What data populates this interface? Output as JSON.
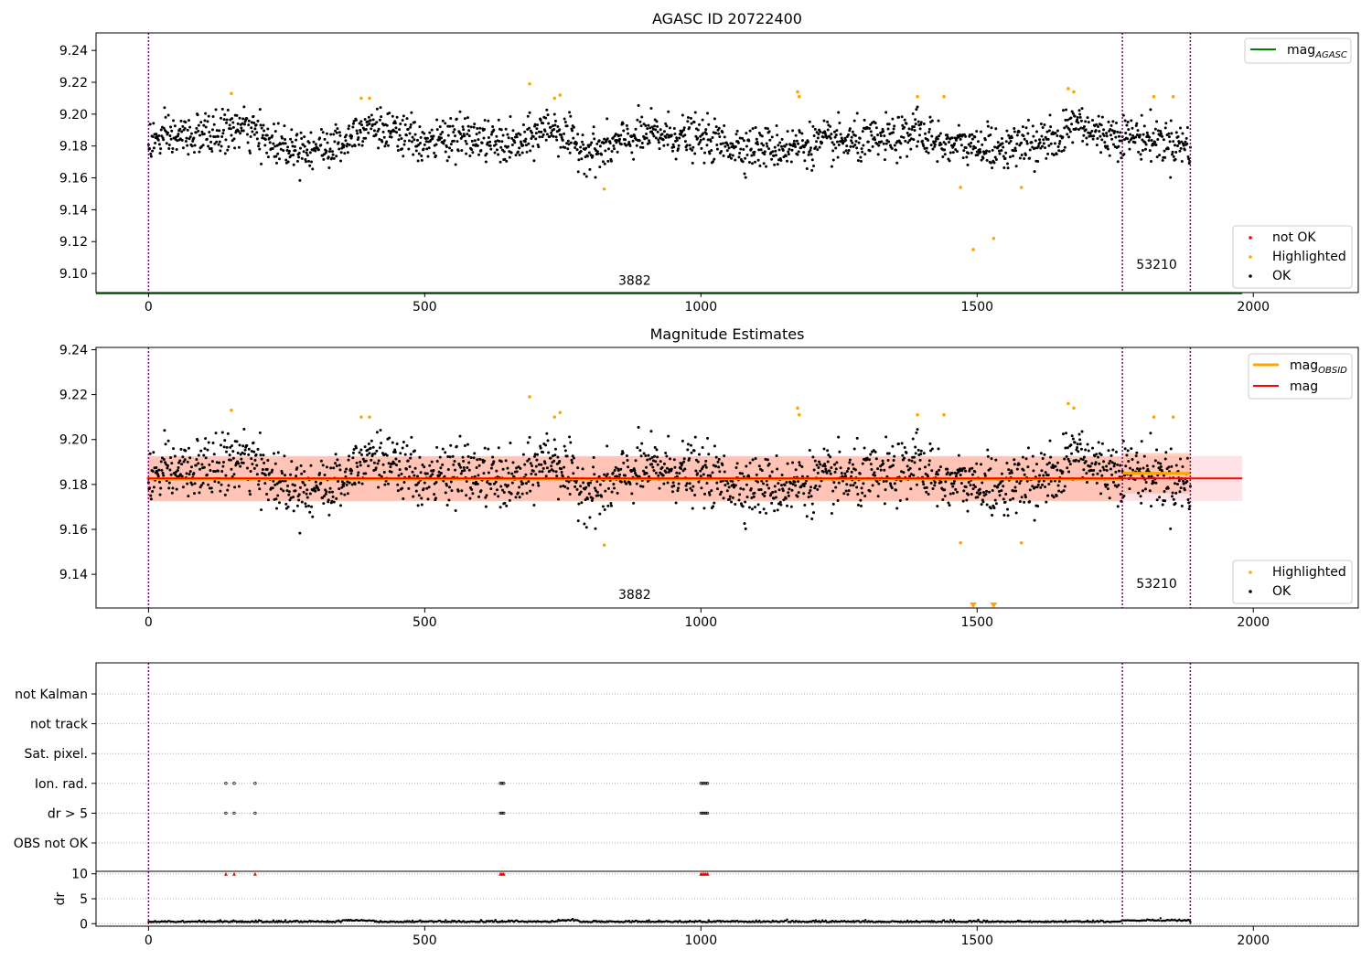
{
  "colors": {
    "ok": "#000000",
    "highlighted": "#ffa500",
    "not_ok": "#ff0000",
    "mag_agasc": "#008000",
    "mag_line": "#ff0000",
    "mag_obsid": "#ffa500",
    "obsid_marker": "#800080",
    "band_red": "#ffb6c1",
    "band_orange": "#ffa07a",
    "grid": "#b0b0b0"
  },
  "chart_data": [
    {
      "type": "scatter",
      "title": "AGASC ID 20722400",
      "xlim": [
        -95,
        2190
      ],
      "ylim": [
        9.088,
        9.251
      ],
      "xticks": [
        "0",
        "500",
        "1000",
        "1500",
        "2000"
      ],
      "xtick_values": [
        0,
        500,
        1000,
        1500,
        2000
      ],
      "yticks": [
        "9.10",
        "9.12",
        "9.14",
        "9.16",
        "9.18",
        "9.20",
        "9.22",
        "9.24"
      ],
      "ytick_values": [
        9.1,
        9.12,
        9.14,
        9.16,
        9.18,
        9.2,
        9.22,
        9.24
      ],
      "obsid_lines": [
        0,
        1763,
        1886
      ],
      "annotations": [
        {
          "text": "3882",
          "x": 880,
          "y": 9.093
        },
        {
          "text": "53210",
          "x": 1825,
          "y": 9.103
        }
      ],
      "mag_agasc": {
        "label": "mag",
        "sub": "AGASC",
        "value": 9.0875,
        "x_end": 1980
      },
      "legend_top": [
        {
          "label": "mag",
          "sub": "AGASC",
          "color": "#008000"
        }
      ],
      "legend_bottom": [
        {
          "label": "not OK",
          "color": "#ff0000"
        },
        {
          "label": "Highlighted",
          "color": "#ffa500"
        },
        {
          "label": "OK",
          "color": "#000000"
        }
      ],
      "highlighted_points": [
        {
          "x": 150,
          "y": 9.213
        },
        {
          "x": 385,
          "y": 9.21
        },
        {
          "x": 400,
          "y": 9.21
        },
        {
          "x": 690,
          "y": 9.219
        },
        {
          "x": 735,
          "y": 9.21
        },
        {
          "x": 745,
          "y": 9.212
        },
        {
          "x": 825,
          "y": 9.153
        },
        {
          "x": 1175,
          "y": 9.214
        },
        {
          "x": 1178,
          "y": 9.211
        },
        {
          "x": 1392,
          "y": 9.211
        },
        {
          "x": 1440,
          "y": 9.211
        },
        {
          "x": 1470,
          "y": 9.154
        },
        {
          "x": 1493,
          "y": 9.115
        },
        {
          "x": 1530,
          "y": 9.122
        },
        {
          "x": 1580,
          "y": 9.154
        },
        {
          "x": 1665,
          "y": 9.216
        },
        {
          "x": 1675,
          "y": 9.214
        },
        {
          "x": 1820,
          "y": 9.211
        },
        {
          "x": 1855,
          "y": 9.211
        }
      ],
      "ok_points_note": "about 1880 points, x from 0 to 1886, y mostly between 9.16 and 9.205"
    },
    {
      "type": "scatter",
      "title": "Magnitude Estimates",
      "xlim": [
        -95,
        2190
      ],
      "ylim": [
        9.125,
        9.241
      ],
      "xticks": [
        "0",
        "500",
        "1000",
        "1500",
        "2000"
      ],
      "xtick_values": [
        0,
        500,
        1000,
        1500,
        2000
      ],
      "yticks": [
        "9.14",
        "9.16",
        "9.18",
        "9.20",
        "9.22",
        "9.24"
      ],
      "ytick_values": [
        9.14,
        9.16,
        9.18,
        9.2,
        9.22,
        9.24
      ],
      "obsid_lines": [
        0,
        1763,
        1886
      ],
      "annotations": [
        {
          "text": "3882",
          "x": 880,
          "y": 9.129
        },
        {
          "text": "53210",
          "x": 1825,
          "y": 9.134
        }
      ],
      "mag": {
        "value": 9.1827,
        "band": [
          9.1727,
          9.1927
        ],
        "x_start": -3,
        "x_end": 1980
      },
      "mag_obsid": [
        {
          "x_start": 0,
          "x_end": 1763,
          "value": 9.1825,
          "band": [
            9.1725,
            9.1925
          ]
        },
        {
          "x_start": 1763,
          "x_end": 1886,
          "value": 9.185,
          "band": [
            9.176,
            9.194
          ]
        }
      ],
      "legend_top": [
        {
          "label": "mag",
          "sub": "OBSID",
          "color": "#ffa500"
        },
        {
          "label": "mag",
          "sub": "",
          "color": "#ff0000"
        }
      ],
      "legend_bottom": [
        {
          "label": "Highlighted",
          "color": "#ffa500"
        },
        {
          "label": "OK",
          "color": "#000000"
        }
      ],
      "highlighted_points": [
        {
          "x": 150,
          "y": 9.213
        },
        {
          "x": 385,
          "y": 9.21
        },
        {
          "x": 400,
          "y": 9.21
        },
        {
          "x": 690,
          "y": 9.219
        },
        {
          "x": 735,
          "y": 9.21
        },
        {
          "x": 745,
          "y": 9.212
        },
        {
          "x": 825,
          "y": 9.153
        },
        {
          "x": 1175,
          "y": 9.214
        },
        {
          "x": 1178,
          "y": 9.211
        },
        {
          "x": 1392,
          "y": 9.211
        },
        {
          "x": 1440,
          "y": 9.211
        },
        {
          "x": 1470,
          "y": 9.154
        },
        {
          "x": 1580,
          "y": 9.154
        },
        {
          "x": 1665,
          "y": 9.216
        },
        {
          "x": 1675,
          "y": 9.214
        },
        {
          "x": 1820,
          "y": 9.21
        },
        {
          "x": 1855,
          "y": 9.21
        }
      ],
      "below_range_markers": [
        {
          "x": 1493
        },
        {
          "x": 1530
        }
      ]
    },
    {
      "type": "scatter",
      "title": "",
      "xlim": [
        -95,
        2190
      ],
      "xticks": [
        "0",
        "500",
        "1000",
        "1500",
        "2000"
      ],
      "xtick_values": [
        0,
        500,
        1000,
        1500,
        2000
      ],
      "obsid_lines": [
        0,
        1763,
        1886
      ],
      "flag_rows": [
        "not Kalman",
        "not track",
        "Sat. pixel.",
        "Ion. rad.",
        "dr > 5",
        "OBS not OK"
      ],
      "flag_points": {
        "Ion. rad.": [
          140,
          155,
          193,
          637,
          640,
          643,
          1000,
          1003,
          1006,
          1009,
          1012
        ],
        "dr > 5": [
          140,
          155,
          193,
          637,
          640,
          643,
          1000,
          1003,
          1006,
          1009,
          1012
        ]
      },
      "dr": {
        "ylabel": "dr",
        "yticks": [
          "0",
          "5",
          "10"
        ],
        "ytick_values": [
          0,
          5,
          10
        ],
        "ylim": [
          -0.5,
          10.5
        ],
        "clipped_at_10": [
          140,
          155,
          193,
          637,
          640,
          643,
          1000,
          1003,
          1006,
          1009,
          1012
        ],
        "typical_value": 0.3
      }
    }
  ]
}
